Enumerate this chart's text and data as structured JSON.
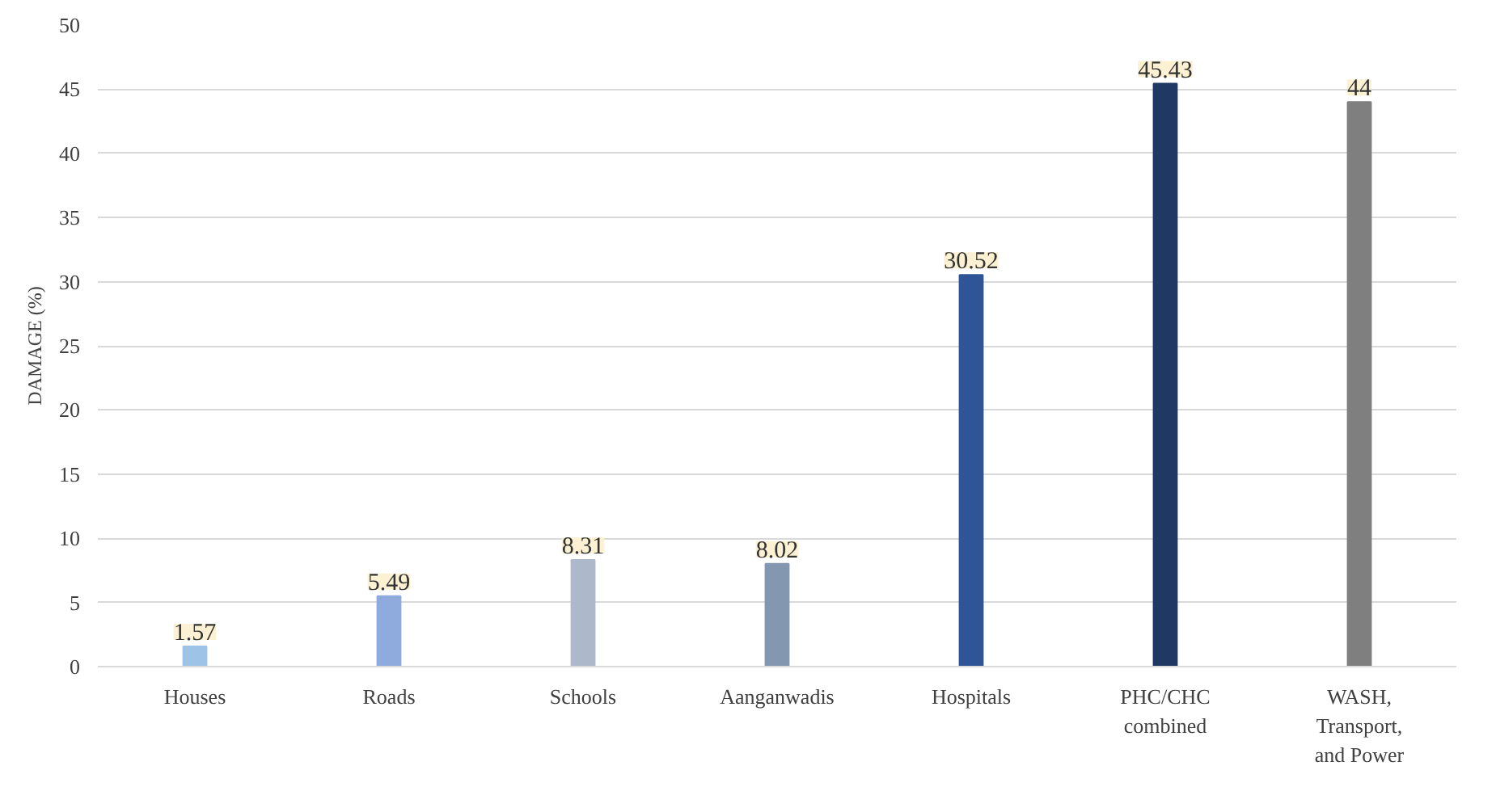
{
  "chart_data": {
    "type": "bar",
    "ylabel": "DAMAGE (%)",
    "categories": [
      "Houses",
      "Roads",
      "Schools",
      "Aanganwadis",
      "Hospitals",
      "PHC/CHC combined",
      "WASH, Transport, and Power"
    ],
    "values": [
      1.57,
      5.49,
      8.31,
      8.02,
      30.52,
      45.43,
      44
    ],
    "colors": [
      "#9dc3e6",
      "#8faadc",
      "#adb9ca",
      "#8497b0",
      "#2f5597",
      "#203864",
      "#7f7f7f"
    ],
    "ylim": [
      0,
      50
    ],
    "yticks": [
      0,
      5,
      10,
      15,
      20,
      25,
      30,
      35,
      40,
      45,
      50
    ],
    "grid": "y",
    "data_labels": true
  }
}
